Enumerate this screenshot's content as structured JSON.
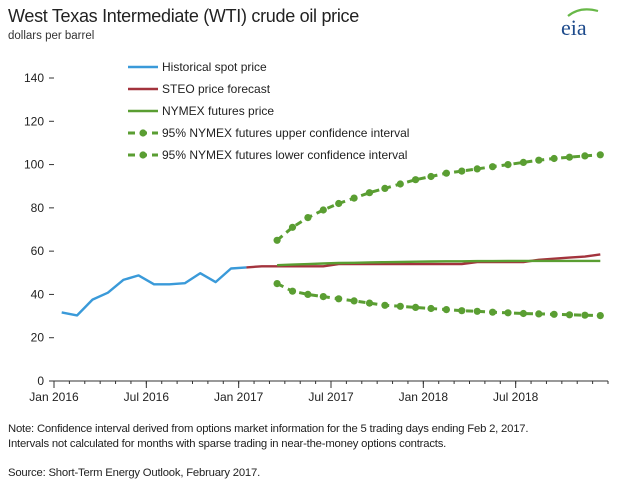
{
  "header": {
    "title": "West Texas Intermediate (WTI) crude oil price",
    "subtitle": "dollars per barrel",
    "logo_text": "eia"
  },
  "footer": {
    "note": "Note: Confidence interval derived from options market information for the 5 trading days ending Feb 2, 2017. Intervals not calculated for months with sparse trading in near-the-money options contracts.",
    "source": "Source: Short-Term Energy Outlook, February 2017."
  },
  "colors": {
    "historical": "#3a9ad9",
    "steo": "#a3333d",
    "nymex": "#5a9e32",
    "logo_accent": "#68b848"
  },
  "chart_data": {
    "type": "line",
    "title": "West Texas Intermediate (WTI) crude oil price",
    "ylabel": "dollars per barrel",
    "ylim": [
      0,
      140
    ],
    "yticks": [
      0,
      20,
      40,
      60,
      80,
      100,
      120,
      140
    ],
    "xlim": [
      "2016-01",
      "2018-12"
    ],
    "xtick_labels": [
      {
        "date": "2016-01",
        "label": "Jan 2016"
      },
      {
        "date": "2016-07",
        "label": "Jul 2016"
      },
      {
        "date": "2017-01",
        "label": "Jan 2017"
      },
      {
        "date": "2017-07",
        "label": "Jul 2017"
      },
      {
        "date": "2018-01",
        "label": "Jan 2018"
      },
      {
        "date": "2018-07",
        "label": "Jul 2018"
      }
    ],
    "grid": false,
    "legend_position": "top-center",
    "series": [
      {
        "name": "Historical spot price",
        "style": "solid",
        "color": "#3a9ad9",
        "x": [
          "2016-01",
          "2016-02",
          "2016-03",
          "2016-04",
          "2016-05",
          "2016-06",
          "2016-07",
          "2016-08",
          "2016-09",
          "2016-10",
          "2016-11",
          "2016-12",
          "2017-01"
        ],
        "values": [
          31.7,
          30.3,
          37.6,
          40.8,
          46.7,
          48.8,
          44.7,
          44.7,
          45.2,
          49.8,
          45.7,
          52.0,
          52.5
        ]
      },
      {
        "name": "STEO price forecast",
        "style": "solid",
        "color": "#a3333d",
        "x": [
          "2017-01",
          "2017-02",
          "2017-03",
          "2017-04",
          "2017-05",
          "2017-06",
          "2017-07",
          "2017-08",
          "2017-09",
          "2017-10",
          "2017-11",
          "2017-12",
          "2018-01",
          "2018-02",
          "2018-03",
          "2018-04",
          "2018-05",
          "2018-06",
          "2018-07",
          "2018-08",
          "2018-09",
          "2018-10",
          "2018-11",
          "2018-12"
        ],
        "values": [
          52.5,
          53.0,
          53.0,
          53.0,
          53.0,
          53.0,
          54.0,
          54.0,
          54.0,
          54.0,
          54.0,
          54.0,
          54.0,
          54.0,
          54.0,
          55.0,
          55.0,
          55.0,
          55.0,
          56.0,
          56.5,
          57.0,
          57.5,
          58.5
        ]
      },
      {
        "name": "NYMEX futures price",
        "style": "solid",
        "color": "#5a9e32",
        "x": [
          "2017-03",
          "2017-04",
          "2017-05",
          "2017-06",
          "2017-07",
          "2017-08",
          "2017-09",
          "2017-10",
          "2017-11",
          "2017-12",
          "2018-01",
          "2018-02",
          "2018-03",
          "2018-04",
          "2018-05",
          "2018-06",
          "2018-07",
          "2018-08",
          "2018-09",
          "2018-10",
          "2018-11",
          "2018-12"
        ],
        "values": [
          53.5,
          53.8,
          54.0,
          54.3,
          54.5,
          54.6,
          54.8,
          54.9,
          55.0,
          55.1,
          55.2,
          55.3,
          55.3,
          55.4,
          55.4,
          55.5,
          55.5,
          55.5,
          55.5,
          55.5,
          55.5,
          55.5
        ]
      },
      {
        "name": "95% NYMEX futures upper confidence interval",
        "style": "dashed-dots",
        "color": "#5a9e32",
        "x": [
          "2017-03",
          "2017-04",
          "2017-05",
          "2017-06",
          "2017-07",
          "2017-08",
          "2017-09",
          "2017-10",
          "2017-11",
          "2017-12",
          "2018-01",
          "2018-02",
          "2018-03",
          "2018-04",
          "2018-05",
          "2018-06",
          "2018-07",
          "2018-08",
          "2018-09",
          "2018-10",
          "2018-11",
          "2018-12"
        ],
        "values": [
          65.0,
          71.0,
          75.5,
          79.0,
          82.0,
          84.5,
          87.0,
          89.0,
          91.0,
          93.0,
          94.5,
          96.0,
          97.0,
          98.0,
          99.0,
          100.0,
          101.0,
          102.0,
          102.8,
          103.4,
          104.0,
          104.5
        ]
      },
      {
        "name": "95% NYMEX futures lower confidence interval",
        "style": "dashed-dots",
        "color": "#5a9e32",
        "x": [
          "2017-03",
          "2017-04",
          "2017-05",
          "2017-06",
          "2017-07",
          "2017-08",
          "2017-09",
          "2017-10",
          "2017-11",
          "2017-12",
          "2018-01",
          "2018-02",
          "2018-03",
          "2018-04",
          "2018-05",
          "2018-06",
          "2018-07",
          "2018-08",
          "2018-09",
          "2018-10",
          "2018-11",
          "2018-12"
        ],
        "values": [
          45.0,
          41.5,
          40.0,
          39.0,
          38.0,
          37.0,
          36.0,
          35.0,
          34.5,
          34.0,
          33.5,
          33.0,
          32.5,
          32.2,
          31.8,
          31.5,
          31.2,
          31.0,
          30.8,
          30.6,
          30.4,
          30.2
        ]
      }
    ]
  }
}
